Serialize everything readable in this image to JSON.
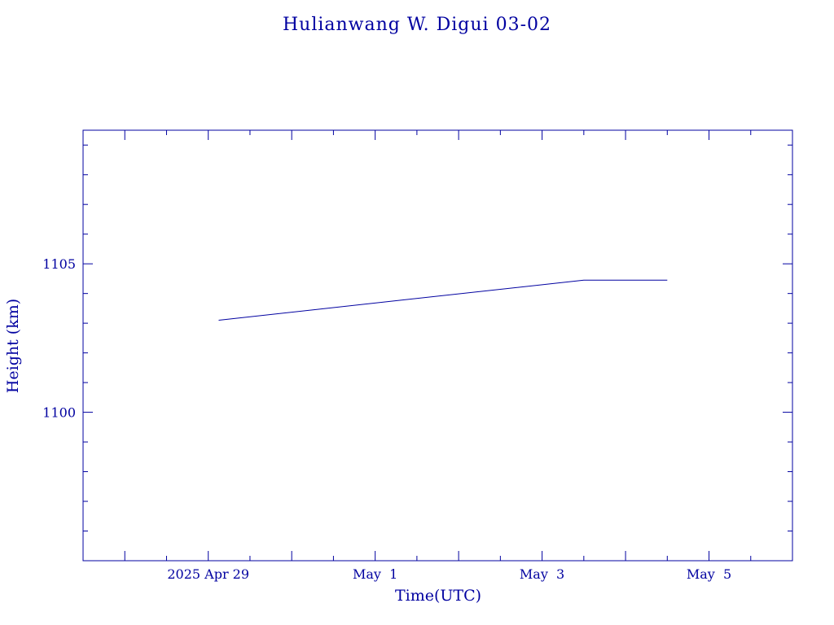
{
  "chart_data": {
    "type": "line",
    "title": "Hulianwang W. Digui 03-02",
    "xlabel": "Time(UTC)",
    "ylabel": "Height (km)",
    "x_range": [
      "2025-04-27 12:00",
      "2025-05-06 00:00"
    ],
    "ylim": [
      1095,
      1109.5
    ],
    "x_tick_labels": [
      "2025 Apr 29",
      "May  1",
      "May  3",
      "May  5"
    ],
    "x_tick_dates": [
      "2025-04-29",
      "2025-05-01",
      "2025-05-03",
      "2025-05-05"
    ],
    "y_tick_labels": [
      "1100",
      "1105"
    ],
    "y_tick_values": [
      1100,
      1105
    ],
    "grid": false,
    "series": [
      {
        "x": [
          "2025-04-29 03:00",
          "2025-05-03 12:00",
          "2025-05-04 12:00"
        ],
        "y": [
          1103.1,
          1104.45,
          1104.45
        ]
      }
    ],
    "color": "#0000a0"
  }
}
